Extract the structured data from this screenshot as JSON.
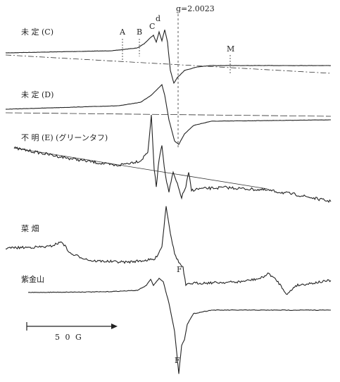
{
  "g_value": "g=2.0023",
  "spectra": [
    {
      "label": "未 定 (C)"
    },
    {
      "label": "未 定 (D)"
    },
    {
      "label": "不 明 (E) (グリーンタフ)"
    },
    {
      "label": "菜 畑"
    },
    {
      "label": "紫金山"
    }
  ],
  "peak_labels": [
    "A",
    "B",
    "C",
    "d",
    "M",
    "F",
    "F"
  ],
  "scale_bar": "5 0 G"
}
